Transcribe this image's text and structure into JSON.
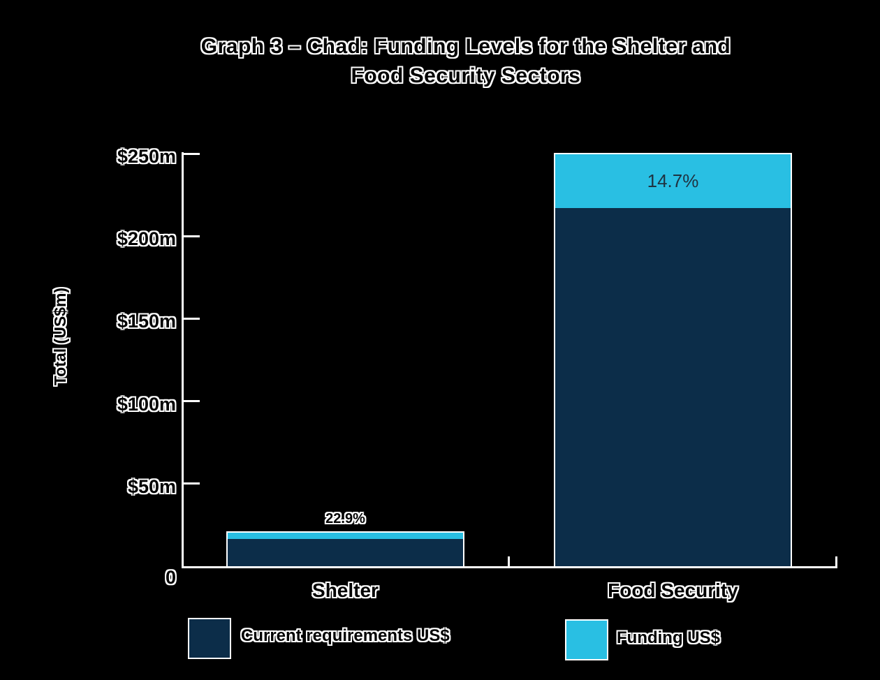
{
  "figure": {
    "title_line1": "Graph 3 – Chad: Funding Levels for the Shelter and",
    "title_line2": "Food Security Sectors"
  },
  "y_axis": {
    "title": "Total (US$m)"
  },
  "legend": {
    "items": [
      {
        "label": "Current requirements US$",
        "color": "#0c2d49"
      },
      {
        "label": "Funding US$",
        "color": "#29bfe3"
      }
    ]
  },
  "chart_data": {
    "type": "bar",
    "stacked": true,
    "title": "Graph 3 – Chad: Funding Levels for the Shelter and Food Security Sectors",
    "xlabel": "",
    "ylabel": "Total (US$m)",
    "ylim": [
      0,
      250
    ],
    "yticks": [
      250,
      200,
      150,
      100,
      50,
      0
    ],
    "ytick_labels": [
      "$250m",
      "$200m",
      "$150m",
      "$100m",
      "$50m",
      "0"
    ],
    "categories": [
      "Shelter",
      "Food Security"
    ],
    "series": [
      {
        "name": "Current requirements US$",
        "color": "#0c2d49",
        "values": [
          16.5,
          217
        ]
      },
      {
        "name": "Funding US$",
        "color": "#29bfe3",
        "values": [
          3.8,
          32.5
        ]
      }
    ],
    "bar_labels": [
      "22.9%",
      "14.7%"
    ],
    "grid": false,
    "legend_position": "bottom"
  },
  "colors": {
    "background": "#000000",
    "axis": "#ffffff",
    "requirements": "#0c2d49",
    "funding": "#29bfe3",
    "label_on_funding": "#1f3240"
  }
}
